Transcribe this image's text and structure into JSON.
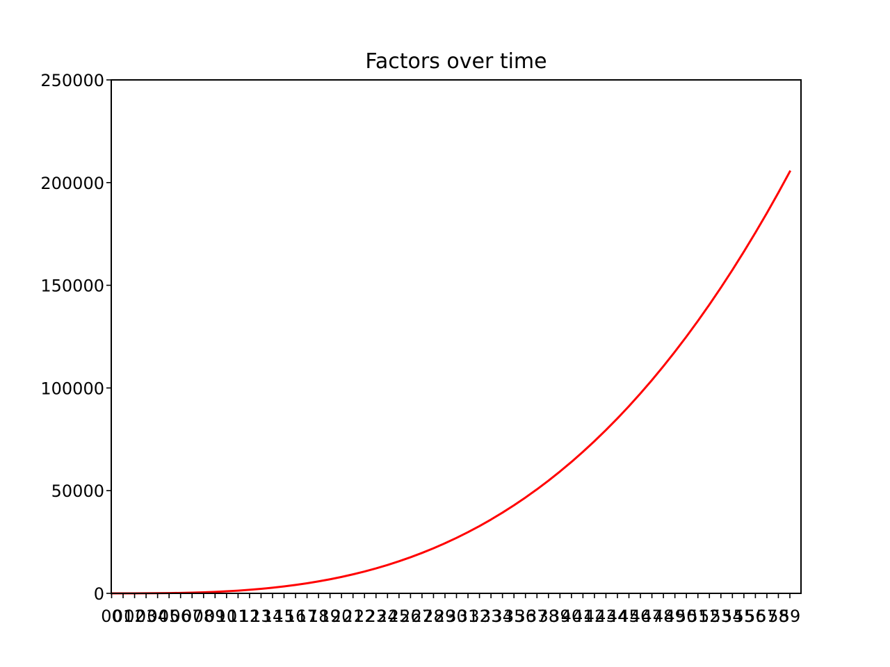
{
  "chart_data": {
    "type": "line",
    "title": "Factors over time",
    "xlabel": "",
    "ylabel": "",
    "x": [
      "00",
      "01",
      "02",
      "03",
      "04",
      "05",
      "06",
      "07",
      "08",
      "09",
      "10",
      "11",
      "12",
      "13",
      "14",
      "15",
      "16",
      "17",
      "18",
      "19",
      "20",
      "21",
      "22",
      "23",
      "24",
      "25",
      "26",
      "27",
      "28",
      "29",
      "30",
      "31",
      "32",
      "33",
      "34",
      "35",
      "36",
      "37",
      "38",
      "39",
      "40",
      "41",
      "42",
      "43",
      "44",
      "45",
      "46",
      "47",
      "48",
      "49",
      "50",
      "51",
      "52",
      "53",
      "54",
      "55",
      "56",
      "57",
      "58",
      "59"
    ],
    "series": [
      {
        "color": "#ff0000",
        "values": [
          0,
          1,
          8,
          27,
          64,
          125,
          216,
          343,
          512,
          729,
          1000,
          1331,
          1728,
          2197,
          2744,
          3375,
          4096,
          4913,
          5832,
          6859,
          8000,
          9261,
          10648,
          12167,
          13824,
          15625,
          17576,
          19683,
          21952,
          24389,
          27000,
          29791,
          32768,
          35937,
          39304,
          42875,
          46656,
          50653,
          54872,
          59319,
          64000,
          68921,
          74088,
          79507,
          85184,
          91125,
          97336,
          103823,
          110592,
          117649,
          125000,
          132651,
          140608,
          148877,
          157464,
          166375,
          175616,
          185193,
          195112,
          205379
        ]
      }
    ],
    "ylim": [
      0,
      250000
    ],
    "yticks": [
      "0",
      "50000",
      "100000",
      "150000",
      "200000",
      "250000"
    ],
    "ytick_values": [
      0,
      50000,
      100000,
      150000,
      200000,
      250000
    ],
    "grid": false,
    "legend": "none"
  }
}
